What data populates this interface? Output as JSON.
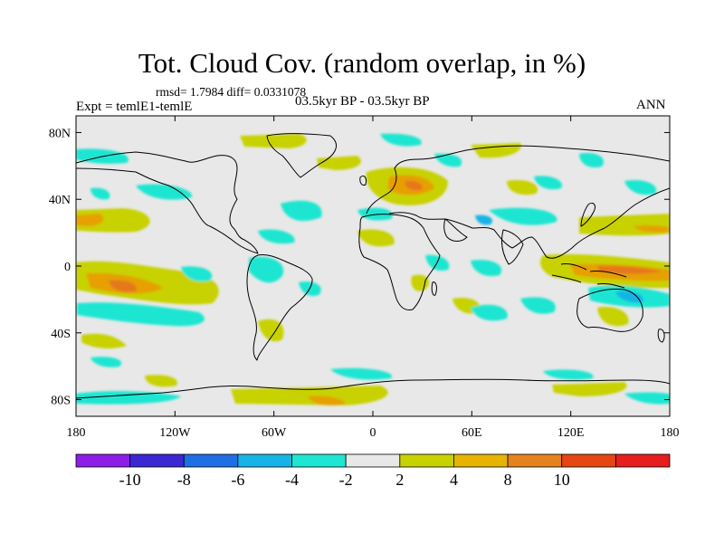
{
  "figure": {
    "title": "Tot. Cloud Cov. (random overlap, in %)",
    "stats": "rmsd= 1.7984 diff= 0.0331078",
    "experiment": "Expt = temlE1-temlE",
    "period": "03.5kyr BP - 03.5kyr BP",
    "season": "ANN"
  },
  "map": {
    "projection": "cylindrical equidistant",
    "lon_range": [
      -180,
      180
    ],
    "lat_range": [
      -90,
      90
    ],
    "background_color": "#e8e8e8",
    "coastline_color": "#000000",
    "lat_ticks": [
      {
        "value": 80,
        "label": "80N"
      },
      {
        "value": 40,
        "label": "40N"
      },
      {
        "value": 0,
        "label": "0"
      },
      {
        "value": -40,
        "label": "40S"
      },
      {
        "value": -80,
        "label": "80S"
      }
    ],
    "lon_ticks": [
      {
        "value": -180,
        "label": "180"
      },
      {
        "value": -120,
        "label": "120W"
      },
      {
        "value": -60,
        "label": "60W"
      },
      {
        "value": 0,
        "label": "0"
      },
      {
        "value": 60,
        "label": "60E"
      },
      {
        "value": 120,
        "label": "120E"
      },
      {
        "value": 180,
        "label": "180"
      }
    ]
  },
  "colorbar": {
    "colors": [
      "#8c1ee6",
      "#3c28d2",
      "#1e6ee6",
      "#16b4e6",
      "#1ee6d2",
      "#e8e8e8",
      "#c8d200",
      "#e6b400",
      "#e6821e",
      "#e64614",
      "#e61e1e"
    ],
    "labels": [
      "-10",
      "-8",
      "-6",
      "-4",
      "-2",
      "2",
      "4",
      "8",
      "10"
    ]
  }
}
